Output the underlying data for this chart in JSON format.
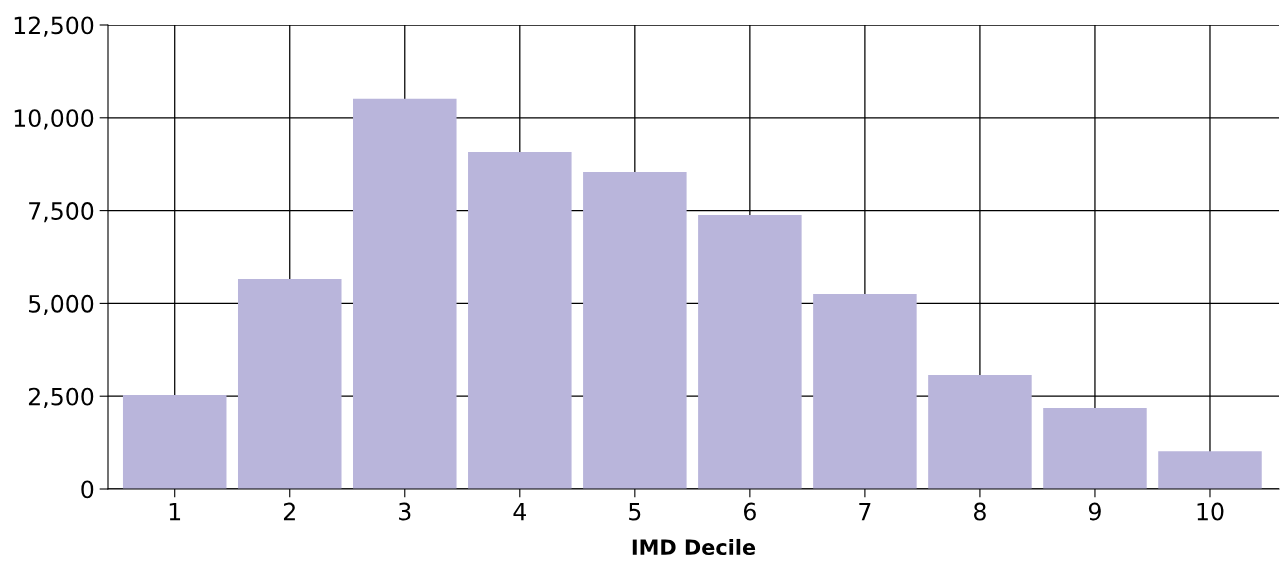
{
  "chart_data": {
    "type": "bar",
    "xlabel": "IMD Decile",
    "categories": [
      "1",
      "2",
      "3",
      "4",
      "5",
      "6",
      "7",
      "8",
      "9",
      "10"
    ],
    "values": [
      2530,
      5660,
      10510,
      9080,
      8540,
      7380,
      5250,
      3070,
      2180,
      1020
    ],
    "color": "#b9b5db",
    "ylim": [
      0,
      12500
    ],
    "yticks": [
      {
        "value": 0,
        "label": "0"
      },
      {
        "value": 2500,
        "label": "2,500"
      },
      {
        "value": 5000,
        "label": "5,000"
      },
      {
        "value": 7500,
        "label": "7,500"
      },
      {
        "value": 10000,
        "label": "10,000"
      },
      {
        "value": 12500,
        "label": "12,500"
      }
    ],
    "grid": true
  }
}
